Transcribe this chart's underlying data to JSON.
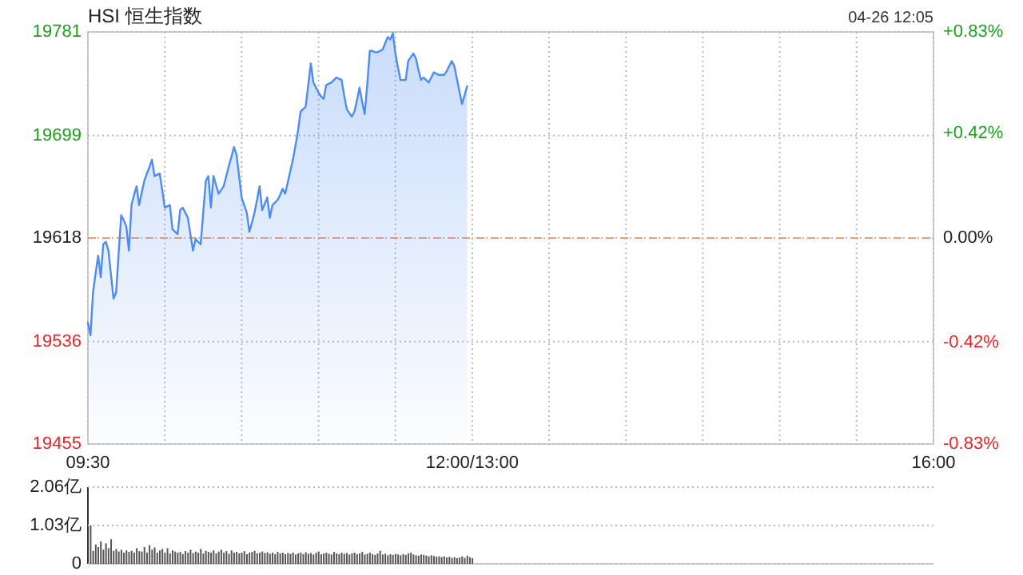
{
  "chart_data": [
    {
      "type": "area",
      "title": "HSI 恒生指数",
      "annotations": [
        "04-26 12:05"
      ],
      "categories": [
        "09:30",
        null,
        null,
        null,
        null,
        null,
        null,
        null,
        null,
        null,
        null,
        null,
        null,
        null,
        null,
        null,
        null,
        null,
        null,
        null,
        null,
        null,
        null,
        null,
        null,
        null,
        null,
        null,
        null,
        null,
        null,
        null,
        null,
        null,
        null,
        null,
        null,
        null,
        null,
        null,
        null,
        null,
        null,
        null,
        null,
        null,
        null,
        null,
        null,
        null,
        null,
        null,
        null,
        null,
        null,
        null,
        null,
        null,
        null,
        null,
        null,
        null,
        null,
        null,
        null,
        null,
        null,
        null,
        null,
        null,
        null,
        null,
        null,
        null,
        null,
        null,
        null,
        null,
        null,
        null,
        null,
        null,
        null,
        null,
        null,
        null,
        null,
        null,
        null,
        null,
        null,
        null,
        null,
        null,
        null,
        null,
        null,
        null,
        null,
        null,
        null,
        null,
        null,
        null,
        null,
        null,
        null,
        null,
        null,
        null,
        null,
        null,
        null,
        null,
        null,
        null,
        null,
        null,
        null,
        null,
        null,
        null,
        null,
        null,
        null,
        null,
        null,
        null,
        null,
        null,
        null,
        null,
        null,
        null,
        null,
        null,
        null,
        null,
        null,
        null,
        null,
        null,
        null,
        null,
        null,
        null,
        null,
        null,
        null,
        null,
        "12:00/13:00",
        null,
        null,
        null,
        null,
        null,
        null,
        null,
        null,
        null,
        null,
        null,
        null,
        null,
        null,
        null,
        null,
        null,
        null,
        null,
        null,
        null,
        null,
        null,
        null,
        null,
        null,
        null,
        null,
        null,
        null,
        null,
        null,
        null,
        null,
        null,
        null,
        null,
        null,
        null,
        null,
        null,
        null,
        null,
        null,
        null,
        null,
        null,
        null,
        null,
        null,
        null,
        null,
        null,
        null,
        null,
        null,
        null,
        null,
        null,
        null,
        null,
        null,
        null,
        null,
        null,
        null,
        null,
        null,
        null,
        null,
        null,
        null,
        null,
        null,
        null,
        null,
        null,
        null,
        null,
        null,
        null,
        null,
        null,
        null,
        null,
        null,
        null,
        null,
        null,
        null,
        null,
        null,
        null,
        null,
        null,
        null,
        null,
        null,
        null,
        null,
        null,
        null,
        null,
        null,
        null,
        null,
        null,
        null,
        null,
        null,
        null,
        null,
        null,
        null,
        null,
        null,
        null,
        null,
        null,
        null,
        null,
        null,
        null,
        null,
        null,
        null,
        null,
        null,
        null,
        null,
        null,
        null,
        null,
        null,
        null,
        null,
        null,
        null,
        null,
        null,
        null,
        null,
        null,
        null,
        null,
        null,
        null,
        null,
        null,
        null,
        null,
        null,
        null,
        null,
        null,
        null,
        null,
        null,
        null,
        null,
        null,
        null,
        null,
        null,
        null,
        null,
        null,
        null,
        null,
        null,
        null,
        null,
        null,
        null,
        null,
        null,
        null,
        null,
        null,
        "16:00"
      ],
      "values": [
        19551,
        19541,
        19575,
        19590,
        19604,
        19587,
        19613,
        19615,
        19608,
        19589,
        19570,
        19575,
        19606,
        19636,
        19632,
        19627,
        19608,
        19644,
        19652,
        19659,
        19644,
        19654,
        19663,
        19669,
        19674,
        19680,
        19667,
        19668,
        19669,
        19656,
        19642,
        19643,
        19644,
        19625,
        19623,
        19621,
        19640,
        19642,
        19638,
        19634,
        19621,
        19608,
        19617,
        19615,
        19613,
        19638,
        19663,
        19667,
        19642,
        19667,
        19660,
        19653,
        19656,
        19659,
        19667,
        19675,
        19682,
        19690,
        19684,
        19667,
        19650,
        19644,
        19638,
        19623,
        19630,
        19638,
        19648,
        19659,
        19640,
        19645,
        19650,
        19634,
        19644,
        19646,
        19648,
        19652,
        19657,
        19653,
        19662,
        19671,
        19680,
        19691,
        19703,
        19718,
        19720,
        19722,
        19739,
        19756,
        19741,
        19737,
        19733,
        19730,
        19728,
        19739,
        19740,
        19741,
        19743,
        19745,
        19744,
        19743,
        19731,
        19720,
        19717,
        19714,
        19718,
        19727,
        19737,
        19726,
        19716,
        19739,
        19766,
        19766,
        19765,
        19765,
        19766,
        19767,
        19772,
        19777,
        19775,
        19780,
        19764,
        19753,
        19743,
        19743,
        19743,
        19758,
        19761,
        19764,
        19760,
        19751,
        19743,
        19745,
        19743,
        19741,
        19745,
        19749,
        19748,
        19747,
        19747,
        19747,
        19750,
        19754,
        19758,
        19754,
        19744,
        19734,
        19724,
        19731,
        19738,
        null,
        null,
        null,
        null,
        null,
        null,
        null,
        null,
        null,
        null,
        null,
        null,
        null,
        null,
        null,
        null,
        null,
        null,
        null,
        null,
        null,
        null,
        null,
        null,
        null,
        null,
        null,
        null,
        null,
        null,
        null,
        null,
        null,
        null,
        null,
        null,
        null,
        null,
        null,
        null,
        null,
        null,
        null,
        null,
        null,
        null,
        null,
        null,
        null,
        null,
        null,
        null,
        null,
        null,
        null,
        null,
        null,
        null,
        null,
        null,
        null,
        null,
        null,
        null,
        null,
        null,
        null,
        null,
        null,
        null,
        null,
        null,
        null,
        null,
        null,
        null,
        null,
        null,
        null,
        null,
        null,
        null,
        null,
        null,
        null,
        null,
        null,
        null,
        null,
        null,
        null,
        null,
        null,
        null,
        null,
        null,
        null,
        null,
        null,
        null,
        null,
        null,
        null,
        null,
        null,
        null,
        null,
        null,
        null,
        null,
        null,
        null,
        null,
        null,
        null,
        null,
        null,
        null,
        null,
        null,
        null,
        null,
        null,
        null,
        null,
        null,
        null,
        null,
        null,
        null,
        null,
        null,
        null,
        null,
        null,
        null,
        null,
        null,
        null,
        null,
        null,
        null,
        null,
        null,
        null,
        null,
        null,
        null,
        null,
        null,
        null,
        null,
        null,
        null,
        null,
        null,
        null,
        null,
        null,
        null,
        null,
        null,
        null,
        null,
        null,
        null,
        null,
        null,
        null,
        null,
        null,
        null,
        null,
        null,
        null,
        null,
        null,
        null,
        null,
        null,
        null,
        null
      ],
      "color": "#4e8cf2",
      "ylim": [
        19455,
        19781
      ],
      "yticks": [
        19455,
        19536,
        19618,
        19699,
        19781
      ],
      "y2lim": [
        -0.83,
        0.83
      ],
      "y2ticks": [
        {
          "value": -0.83,
          "label": "-0.83%"
        },
        {
          "value": -0.42,
          "label": "-0.42%"
        },
        {
          "value": 0,
          "label": "0.00%"
        },
        {
          "value": 0.42,
          "label": "+0.42%"
        },
        {
          "value": 0.83,
          "label": "+0.83%"
        }
      ],
      "ref_lines": [
        {
          "axis": "y",
          "value": 19618,
          "color": "#f0a070",
          "line_style": "dashed"
        }
      ],
      "grid": true
    },
    {
      "type": "bar",
      "categories": [
        null,
        null,
        null,
        null,
        null,
        null,
        null,
        null,
        null,
        null,
        null,
        null,
        null,
        null,
        null,
        null,
        null,
        null,
        null,
        null,
        null,
        null,
        null,
        null,
        null,
        null,
        null,
        null,
        null,
        null,
        null,
        null,
        null,
        null,
        null,
        null,
        null,
        null,
        null,
        null,
        null,
        null,
        null,
        null,
        null,
        null,
        null,
        null,
        null,
        null,
        null,
        null,
        null,
        null,
        null,
        null,
        null,
        null,
        null,
        null,
        null,
        null,
        null,
        null,
        null,
        null,
        null,
        null,
        null,
        null,
        null,
        null,
        null,
        null,
        null,
        null,
        null,
        null,
        null,
        null,
        null,
        null,
        null,
        null,
        null,
        null,
        null,
        null,
        null,
        null,
        null,
        null,
        null,
        null,
        null,
        null,
        null,
        null,
        null,
        null,
        null,
        null,
        null,
        null,
        null,
        null,
        null,
        null,
        null,
        null,
        null,
        null,
        null,
        null,
        null,
        null,
        null,
        null,
        null,
        null,
        null,
        null,
        null,
        null,
        null,
        null,
        null,
        null,
        null,
        null,
        null,
        null,
        null,
        null,
        null,
        null,
        null,
        null,
        null,
        null,
        null,
        null,
        null,
        null,
        null,
        null,
        null,
        null,
        null,
        null,
        null,
        null,
        null,
        null,
        null,
        null,
        null,
        null,
        null,
        null,
        null,
        null,
        null,
        null,
        null,
        null,
        null,
        null,
        null,
        null,
        null,
        null,
        null,
        null,
        null,
        null,
        null,
        null,
        null,
        null,
        null,
        null,
        null,
        null,
        null,
        null,
        null,
        null,
        null,
        null,
        null,
        null,
        null,
        null,
        null,
        null,
        null,
        null,
        null,
        null,
        null,
        null,
        null,
        null,
        null,
        null,
        null,
        null,
        null,
        null,
        null,
        null,
        null,
        null,
        null,
        null,
        null,
        null,
        null,
        null,
        null,
        null,
        null,
        null,
        null,
        null,
        null,
        null,
        null,
        null,
        null,
        null,
        null,
        null,
        null,
        null,
        null,
        null,
        null,
        null,
        null,
        null,
        null,
        null,
        null,
        null,
        null,
        null,
        null,
        null,
        null,
        null,
        null,
        null,
        null,
        null,
        null,
        null,
        null,
        null,
        null,
        null,
        null,
        null,
        null,
        null,
        null,
        null,
        null,
        null,
        null,
        null,
        null,
        null,
        null,
        null,
        null,
        null,
        null,
        null,
        null,
        null,
        null,
        null,
        null,
        null,
        null,
        null,
        null,
        null,
        null,
        null,
        null,
        null,
        null,
        null,
        null,
        null,
        null,
        null,
        null,
        null,
        null,
        null,
        null,
        null,
        null,
        null,
        null,
        null,
        null,
        null,
        null,
        null,
        null,
        null,
        null,
        null,
        null,
        null,
        null,
        null,
        null,
        null,
        null,
        null,
        null,
        null,
        null,
        null,
        null
      ],
      "values": [
        1.03,
        0.35,
        0.52,
        0.45,
        0.6,
        0.38,
        0.55,
        0.42,
        0.66,
        0.35,
        0.4,
        0.33,
        0.38,
        0.3,
        0.36,
        0.32,
        0.35,
        0.3,
        0.42,
        0.34,
        0.33,
        0.45,
        0.3,
        0.5,
        0.38,
        0.44,
        0.3,
        0.36,
        0.4,
        0.3,
        0.42,
        0.28,
        0.36,
        0.33,
        0.3,
        0.32,
        0.26,
        0.34,
        0.3,
        0.38,
        0.29,
        0.33,
        0.3,
        0.4,
        0.28,
        0.35,
        0.32,
        0.3,
        0.36,
        0.28,
        0.33,
        0.38,
        0.3,
        0.34,
        0.27,
        0.36,
        0.3,
        0.32,
        0.28,
        0.3,
        0.34,
        0.26,
        0.3,
        0.32,
        0.35,
        0.28,
        0.3,
        0.33,
        0.29,
        0.31,
        0.27,
        0.3,
        0.26,
        0.32,
        0.28,
        0.3,
        0.26,
        0.29,
        0.27,
        0.3,
        0.25,
        0.28,
        0.3,
        0.26,
        0.31,
        0.27,
        0.29,
        0.25,
        0.3,
        0.33,
        0.26,
        0.28,
        0.3,
        0.27,
        0.25,
        0.32,
        0.28,
        0.26,
        0.3,
        0.27,
        0.29,
        0.25,
        0.28,
        0.3,
        0.26,
        0.28,
        0.32,
        0.25,
        0.27,
        0.3,
        0.26,
        0.24,
        0.28,
        0.35,
        0.25,
        0.27,
        0.23,
        0.26,
        0.24,
        0.27,
        0.25,
        0.23,
        0.26,
        0.24,
        0.28,
        0.3,
        0.25,
        0.23,
        0.22,
        0.25,
        0.24,
        0.22,
        0.2,
        0.23,
        0.21,
        0.19,
        0.2,
        0.18,
        0.2,
        0.17,
        0.19,
        0.16,
        0.18,
        0.15,
        0.17,
        0.2,
        0.16,
        0.22,
        0.18,
        0.15,
        null,
        null,
        null,
        null,
        null,
        null,
        null,
        null,
        null,
        null,
        null,
        null,
        null,
        null,
        null,
        null,
        null,
        null,
        null,
        null,
        null,
        null,
        null,
        null,
        null,
        null,
        null,
        null,
        null,
        null,
        null,
        null,
        null,
        null,
        null,
        null,
        null,
        null,
        null,
        null,
        null,
        null,
        null,
        null,
        null,
        null,
        null,
        null,
        null,
        null,
        null,
        null,
        null,
        null,
        null,
        null,
        null,
        null,
        null,
        null,
        null,
        null,
        null,
        null,
        null,
        null,
        null,
        null,
        null,
        null,
        null,
        null,
        null,
        null,
        null,
        null,
        null,
        null,
        null,
        null,
        null,
        null,
        null,
        null,
        null,
        null,
        null,
        null,
        null,
        null,
        null,
        null,
        null,
        null,
        null,
        null,
        null,
        null,
        null,
        null,
        null,
        null,
        null,
        null,
        null,
        null,
        null,
        null,
        null,
        null,
        null,
        null,
        null,
        null,
        null,
        null,
        null,
        null,
        null,
        null,
        null,
        null,
        null,
        null,
        null,
        null,
        null,
        null,
        null,
        null,
        null,
        null,
        null,
        null,
        null,
        null,
        null,
        null,
        null,
        null,
        null,
        null,
        null,
        null,
        null,
        null,
        null,
        null,
        null,
        null,
        null,
        null,
        null,
        null,
        null,
        null,
        null,
        null,
        null,
        null,
        null,
        null,
        null,
        null,
        null,
        null,
        null,
        null,
        null,
        null,
        null,
        null,
        null,
        null,
        null,
        null,
        null,
        null,
        null,
        null,
        null
      ],
      "color": "#555555",
      "ylim": [
        0,
        2.06
      ],
      "yticks": [
        0,
        {
          "value": 1.03,
          "label": "1.03亿"
        },
        {
          "value": 2.06,
          "label": "2.06亿"
        }
      ],
      "grid": "y",
      "tick_labels": "y"
    }
  ]
}
